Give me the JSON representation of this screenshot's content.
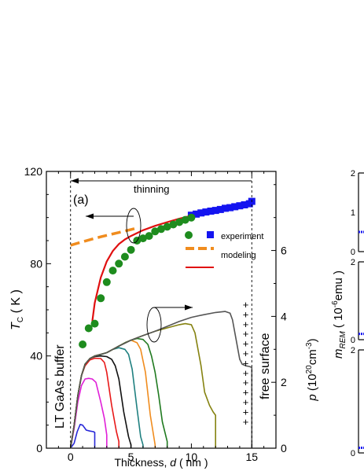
{
  "chart_data": [
    {
      "type": "scatter",
      "panel_label": "(a)",
      "xlabel": "Thickness, d ( nm )",
      "xlabel_parts": [
        "Thickness, ",
        "d",
        " ( nm )"
      ],
      "xlim": [
        -2,
        17
      ],
      "x_ticks": [
        0,
        5,
        10,
        15
      ],
      "ylabel_left": "T_C ( K )",
      "ylabel_left_parts": [
        "T",
        "C",
        " ( K )"
      ],
      "ylim_left": [
        0,
        120
      ],
      "y_ticks_left": [
        0,
        40,
        80,
        120
      ],
      "ylabel_right": "p (10^20 cm^-3)",
      "ylabel_right_parts": [
        "p",
        " (",
        "10",
        "20",
        "cm",
        "-3",
        ")"
      ],
      "ylim_right": [
        0,
        8.4
      ],
      "y_ticks_right": [
        0,
        2,
        4,
        6
      ],
      "grid": false,
      "legend": {
        "placement": "center-right",
        "entries": [
          {
            "label": "experiment",
            "marker": "square",
            "color": "#1414f0"
          },
          {
            "label": "",
            "marker": "circle",
            "color": "#1e8c1e"
          },
          {
            "label": "modeling",
            "style": "dashed",
            "color": "#f08c1e"
          },
          {
            "label": "",
            "style": "solid",
            "color": "#e01010"
          }
        ]
      },
      "annotations": {
        "thinning": "thinning",
        "buffer": "LT GaAs buffer",
        "surface": "free surface",
        "plus_sign": "+"
      },
      "boundary_lines_x": [
        0,
        15
      ],
      "series": [
        {
          "role": "tc_experiment_squares",
          "axis": "left",
          "marker": "square",
          "color": "#1414f0",
          "x": [
            10.0,
            10.4,
            10.8,
            11.2,
            11.6,
            12.0,
            12.4,
            12.8,
            13.2,
            13.6,
            14.0,
            14.4,
            14.8,
            15.0
          ],
          "y": [
            101.0,
            101.5,
            102.0,
            102.4,
            102.8,
            103.1,
            103.5,
            104.0,
            104.3,
            104.7,
            105.1,
            105.5,
            106.0,
            107.0
          ]
        },
        {
          "role": "tc_experiment_circles",
          "axis": "left",
          "marker": "circle",
          "color": "#1e8c1e",
          "x": [
            1.0,
            1.5,
            2.0,
            2.5,
            3.0,
            3.5,
            4.0,
            4.5,
            5.0,
            5.5,
            6.0,
            6.5,
            7.0,
            7.5,
            8.0,
            8.5,
            9.0,
            9.5,
            10.0
          ],
          "y": [
            45,
            52,
            54,
            65,
            72,
            77,
            80,
            83,
            86,
            90,
            91,
            92,
            94,
            95,
            96,
            97,
            98,
            99,
            100
          ]
        },
        {
          "role": "tc_modeling_dashed",
          "axis": "left",
          "style": "dashed",
          "color": "#f08c1e",
          "x": [
            0,
            1,
            2,
            3,
            4,
            5,
            5.5
          ],
          "y": [
            88,
            89.5,
            91,
            92.3,
            93.5,
            94.8,
            95.5
          ]
        },
        {
          "role": "tc_modeling_solid",
          "axis": "left",
          "style": "solid",
          "color": "#e01010",
          "x": [
            1.8,
            2.0,
            2.5,
            3.0,
            3.5,
            4.0,
            4.5,
            5.0,
            6.0,
            7.0,
            8.0,
            9.0,
            10.0,
            11.0,
            12.0,
            13.0,
            14.0,
            15.0
          ],
          "y": [
            55,
            63,
            74,
            81,
            85.5,
            88.5,
            90.5,
            92,
            94.5,
            96.4,
            98,
            99.5,
            100.8,
            102,
            103.2,
            104.4,
            105.5,
            106.5
          ]
        },
        {
          "role": "hole_profile_1nm",
          "axis": "right",
          "style": "solid",
          "color": "#2828d8",
          "x": [
            0,
            0.3,
            0.55,
            0.8,
            1.0,
            1.3,
            1.6,
            1.9,
            2.0,
            2.0
          ],
          "y": [
            0,
            0.15,
            0.5,
            0.72,
            0.7,
            0.55,
            0.52,
            0.5,
            0.48,
            0
          ]
        },
        {
          "role": "hole_profile_2nm",
          "axis": "right",
          "style": "solid",
          "color": "#e020d8",
          "x": [
            0,
            0.3,
            0.6,
            0.9,
            1.2,
            1.5,
            1.8,
            2.1,
            2.5,
            2.8,
            3.0,
            3.0
          ],
          "y": [
            0,
            0.6,
            1.4,
            1.9,
            2.1,
            2.12,
            2.1,
            2.0,
            1.4,
            0.9,
            0.4,
            0
          ]
        },
        {
          "role": "hole_profile_3nm",
          "axis": "right",
          "style": "solid",
          "color": "#e81818",
          "x": [
            0,
            0.3,
            0.6,
            0.9,
            1.2,
            1.6,
            2.0,
            2.5,
            2.8,
            3.0,
            3.4,
            3.8,
            4.0,
            4.0
          ],
          "y": [
            0,
            0.7,
            1.6,
            2.2,
            2.5,
            2.68,
            2.73,
            2.72,
            2.6,
            2.3,
            1.3,
            0.5,
            0.2,
            0
          ]
        },
        {
          "role": "hole_profile_4nm",
          "axis": "right",
          "style": "solid",
          "color": "#111111",
          "x": [
            0,
            0.3,
            0.6,
            0.9,
            1.2,
            1.6,
            2.0,
            2.5,
            3.0,
            3.4,
            3.7,
            4.0,
            4.4,
            4.8,
            5.0,
            5.0
          ],
          "y": [
            0,
            0.7,
            1.6,
            2.2,
            2.55,
            2.72,
            2.78,
            2.8,
            2.78,
            2.7,
            2.5,
            2.1,
            1.1,
            0.35,
            0.1,
            0
          ]
        },
        {
          "role": "hole_profile_5nm",
          "axis": "right",
          "style": "solid",
          "color": "#1f8080",
          "x": [
            0,
            0.3,
            0.6,
            0.9,
            1.2,
            1.6,
            2.0,
            2.5,
            3.0,
            3.5,
            4.0,
            4.5,
            4.8,
            5.1,
            5.5,
            5.8,
            6.0,
            6.0
          ],
          "y": [
            0,
            0.7,
            1.6,
            2.2,
            2.55,
            2.72,
            2.8,
            2.84,
            2.9,
            3.0,
            3.05,
            3.0,
            2.85,
            2.4,
            1.2,
            0.35,
            0.1,
            0
          ]
        },
        {
          "role": "hole_profile_6nm",
          "axis": "right",
          "style": "solid",
          "color": "#f08c1e",
          "x": [
            0,
            0.3,
            0.6,
            0.9,
            1.2,
            1.6,
            2.0,
            2.5,
            3.0,
            3.5,
            4.0,
            4.5,
            5.0,
            5.5,
            5.8,
            6.2,
            6.6,
            7.0,
            7.0
          ],
          "y": [
            0,
            0.7,
            1.6,
            2.2,
            2.55,
            2.72,
            2.8,
            2.85,
            2.9,
            3.0,
            3.1,
            3.2,
            3.28,
            3.2,
            3.0,
            2.3,
            1.0,
            0.1,
            0
          ]
        },
        {
          "role": "hole_profile_7nm",
          "axis": "right",
          "style": "solid",
          "color": "#207a20",
          "x": [
            0,
            0.3,
            0.6,
            0.9,
            1.2,
            1.6,
            2.0,
            2.5,
            3.0,
            3.5,
            4.0,
            4.5,
            5.0,
            5.5,
            6.0,
            6.4,
            6.7,
            7.0,
            7.3,
            7.6,
            8.0,
            8.0
          ],
          "y": [
            0,
            0.7,
            1.6,
            2.2,
            2.55,
            2.72,
            2.8,
            2.85,
            2.9,
            3.0,
            3.1,
            3.2,
            3.28,
            3.33,
            3.3,
            3.15,
            2.8,
            2.3,
            1.6,
            0.8,
            0.2,
            0
          ]
        },
        {
          "role": "hole_profile_10nm",
          "axis": "right",
          "style": "solid",
          "color": "#858210",
          "x": [
            0,
            0.3,
            0.6,
            0.9,
            1.2,
            1.6,
            2.0,
            2.5,
            3.0,
            3.5,
            4.0,
            5.0,
            6.0,
            7.0,
            8.0,
            9.0,
            9.5,
            10.0,
            10.3,
            10.8,
            11.1,
            11.5,
            11.8,
            12.0,
            12.0
          ],
          "y": [
            0,
            0.7,
            1.6,
            2.2,
            2.55,
            2.72,
            2.8,
            2.85,
            2.9,
            3.0,
            3.1,
            3.28,
            3.42,
            3.55,
            3.65,
            3.75,
            3.78,
            3.75,
            3.5,
            2.5,
            1.7,
            1.3,
            1.1,
            1.0,
            0
          ]
        },
        {
          "role": "hole_profile_15nm",
          "axis": "right",
          "style": "solid",
          "color": "#555555",
          "x": [
            0,
            0.3,
            0.6,
            0.9,
            1.2,
            1.6,
            2.0,
            2.5,
            3.0,
            3.5,
            4.0,
            5.0,
            6.0,
            7.0,
            8.0,
            9.0,
            10.0,
            11.0,
            12.0,
            12.8,
            13.2,
            13.4,
            13.7,
            14.0,
            14.2,
            14.5,
            14.8,
            15.0,
            15.0
          ],
          "y": [
            0,
            0.7,
            1.6,
            2.2,
            2.55,
            2.72,
            2.8,
            2.85,
            2.9,
            3.0,
            3.1,
            3.28,
            3.42,
            3.55,
            3.7,
            3.85,
            3.97,
            4.05,
            4.12,
            4.15,
            4.1,
            3.9,
            3.3,
            2.7,
            2.55,
            2.5,
            2.48,
            2.45,
            0
          ]
        }
      ]
    },
    {
      "type": "line",
      "panel": "right-partial",
      "ylabel": "m_REM ( 10^-6 emu )",
      "ylabel_parts": [
        "m",
        "REM",
        " ( ",
        "10",
        "-6",
        "emu )"
      ],
      "sub_panels": [
        {
          "ylim": [
            0,
            2
          ],
          "y_tick_labels": [
            "0",
            "1",
            "2"
          ],
          "trace_start_value": 0.5
        },
        {
          "ylim": [
            0,
            2
          ],
          "y_tick_labels": [
            "0",
            "2"
          ],
          "trace_start_value": 0.15
        },
        {
          "ylim": [
            0,
            2
          ],
          "y_tick_labels": [
            "0",
            "2"
          ],
          "trace_start_value": 0.1
        }
      ],
      "trace_color": "#1a1af0"
    }
  ]
}
